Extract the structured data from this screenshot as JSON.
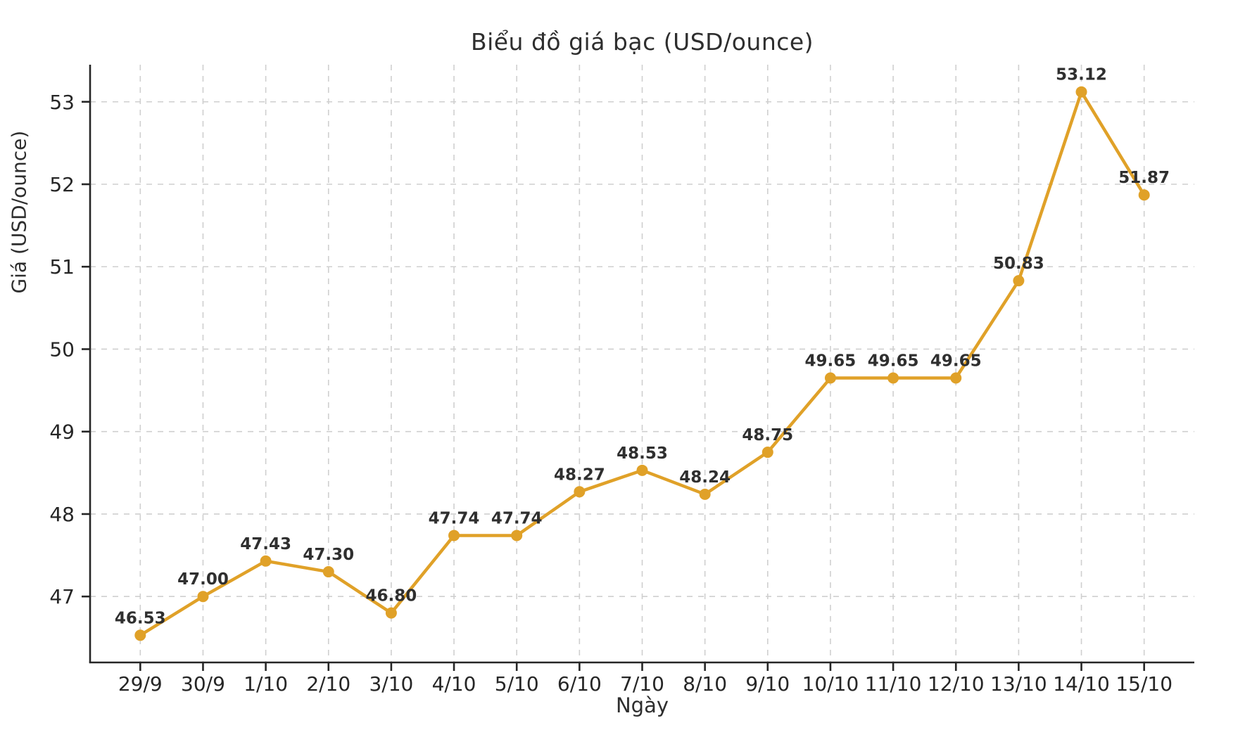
{
  "chart_data": {
    "type": "line",
    "title": "Biểu đồ giá bạc (USD/ounce)",
    "xlabel": "Ngày",
    "ylabel": "Giá (USD/ounce)",
    "categories": [
      "29/9",
      "30/9",
      "1/10",
      "2/10",
      "3/10",
      "4/10",
      "5/10",
      "6/10",
      "7/10",
      "8/10",
      "9/10",
      "10/10",
      "11/10",
      "12/10",
      "13/10",
      "14/10",
      "15/10"
    ],
    "series": [
      {
        "name": "Giá bạc",
        "values": [
          46.53,
          47.0,
          47.43,
          47.3,
          46.8,
          47.74,
          47.74,
          48.27,
          48.53,
          48.24,
          48.75,
          49.65,
          49.65,
          49.65,
          50.83,
          53.12,
          51.87
        ],
        "point_labels": [
          "46.53",
          "47.00",
          "47.43",
          "47.30",
          "46.80",
          "47.74",
          "47.74",
          "48.27",
          "48.53",
          "48.24",
          "48.75",
          "49.65",
          "49.65",
          "49.65",
          "50.83",
          "53.12",
          "51.87"
        ]
      }
    ],
    "yticks": [
      47,
      48,
      49,
      50,
      51,
      52,
      53
    ],
    "ylim": [
      46.2,
      53.45
    ],
    "xlim": [
      -0.8,
      16.8
    ],
    "grid": true,
    "grid_style": "dashed",
    "legend_position": "none",
    "colors": {
      "line": "#E0A128",
      "marker": "#E0A128",
      "grid": "#cfcfcf",
      "spine": "#262626",
      "tick_label": "#262626",
      "title": "#2e2e2e",
      "data_label": "#2f2f2f",
      "background": "#ffffff"
    }
  }
}
